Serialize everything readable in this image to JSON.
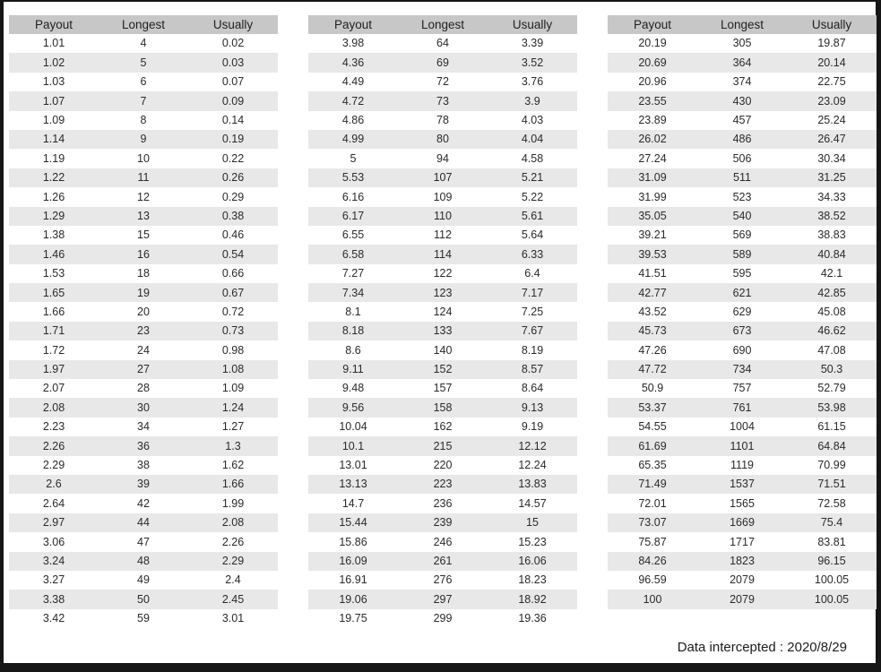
{
  "colors": {
    "frame": "#161616",
    "page_bg": "#ffffff",
    "header_bg": "#c7c7c7",
    "stripe_bg": "#e8e8e8",
    "text": "#2a2a2a"
  },
  "tables": [
    {
      "headers": [
        "Payout",
        "Longest",
        "Usually"
      ],
      "rows": [
        [
          "1.01",
          "4",
          "0.02"
        ],
        [
          "1.02",
          "5",
          "0.03"
        ],
        [
          "1.03",
          "6",
          "0.07"
        ],
        [
          "1.07",
          "7",
          "0.09"
        ],
        [
          "1.09",
          "8",
          "0.14"
        ],
        [
          "1.14",
          "9",
          "0.19"
        ],
        [
          "1.19",
          "10",
          "0.22"
        ],
        [
          "1.22",
          "11",
          "0.26"
        ],
        [
          "1.26",
          "12",
          "0.29"
        ],
        [
          "1.29",
          "13",
          "0.38"
        ],
        [
          "1.38",
          "15",
          "0.46"
        ],
        [
          "1.46",
          "16",
          "0.54"
        ],
        [
          "1.53",
          "18",
          "0.66"
        ],
        [
          "1.65",
          "19",
          "0.67"
        ],
        [
          "1.66",
          "20",
          "0.72"
        ],
        [
          "1.71",
          "23",
          "0.73"
        ],
        [
          "1.72",
          "24",
          "0.98"
        ],
        [
          "1.97",
          "27",
          "1.08"
        ],
        [
          "2.07",
          "28",
          "1.09"
        ],
        [
          "2.08",
          "30",
          "1.24"
        ],
        [
          "2.23",
          "34",
          "1.27"
        ],
        [
          "2.26",
          "36",
          "1.3"
        ],
        [
          "2.29",
          "38",
          "1.62"
        ],
        [
          "2.6",
          "39",
          "1.66"
        ],
        [
          "2.64",
          "42",
          "1.99"
        ],
        [
          "2.97",
          "44",
          "2.08"
        ],
        [
          "3.06",
          "47",
          "2.26"
        ],
        [
          "3.24",
          "48",
          "2.29"
        ],
        [
          "3.27",
          "49",
          "2.4"
        ],
        [
          "3.38",
          "50",
          "2.45"
        ],
        [
          "3.42",
          "59",
          "3.01"
        ]
      ]
    },
    {
      "headers": [
        "Payout",
        "Longest",
        "Usually"
      ],
      "rows": [
        [
          "3.98",
          "64",
          "3.39"
        ],
        [
          "4.36",
          "69",
          "3.52"
        ],
        [
          "4.49",
          "72",
          "3.76"
        ],
        [
          "4.72",
          "73",
          "3.9"
        ],
        [
          "4.86",
          "78",
          "4.03"
        ],
        [
          "4.99",
          "80",
          "4.04"
        ],
        [
          "5",
          "94",
          "4.58"
        ],
        [
          "5.53",
          "107",
          "5.21"
        ],
        [
          "6.16",
          "109",
          "5.22"
        ],
        [
          "6.17",
          "110",
          "5.61"
        ],
        [
          "6.55",
          "112",
          "5.64"
        ],
        [
          "6.58",
          "114",
          "6.33"
        ],
        [
          "7.27",
          "122",
          "6.4"
        ],
        [
          "7.34",
          "123",
          "7.17"
        ],
        [
          "8.1",
          "124",
          "7.25"
        ],
        [
          "8.18",
          "133",
          "7.67"
        ],
        [
          "8.6",
          "140",
          "8.19"
        ],
        [
          "9.11",
          "152",
          "8.57"
        ],
        [
          "9.48",
          "157",
          "8.64"
        ],
        [
          "9.56",
          "158",
          "9.13"
        ],
        [
          "10.04",
          "162",
          "9.19"
        ],
        [
          "10.1",
          "215",
          "12.12"
        ],
        [
          "13.01",
          "220",
          "12.24"
        ],
        [
          "13.13",
          "223",
          "13.83"
        ],
        [
          "14.7",
          "236",
          "14.57"
        ],
        [
          "15.44",
          "239",
          "15"
        ],
        [
          "15.86",
          "246",
          "15.23"
        ],
        [
          "16.09",
          "261",
          "16.06"
        ],
        [
          "16.91",
          "276",
          "18.23"
        ],
        [
          "19.06",
          "297",
          "18.92"
        ],
        [
          "19.75",
          "299",
          "19.36"
        ]
      ]
    },
    {
      "headers": [
        "Payout",
        "Longest",
        "Usually"
      ],
      "rows": [
        [
          "20.19",
          "305",
          "19.87"
        ],
        [
          "20.69",
          "364",
          "20.14"
        ],
        [
          "20.96",
          "374",
          "22.75"
        ],
        [
          "23.55",
          "430",
          "23.09"
        ],
        [
          "23.89",
          "457",
          "25.24"
        ],
        [
          "26.02",
          "486",
          "26.47"
        ],
        [
          "27.24",
          "506",
          "30.34"
        ],
        [
          "31.09",
          "511",
          "31.25"
        ],
        [
          "31.99",
          "523",
          "34.33"
        ],
        [
          "35.05",
          "540",
          "38.52"
        ],
        [
          "39.21",
          "569",
          "38.83"
        ],
        [
          "39.53",
          "589",
          "40.84"
        ],
        [
          "41.51",
          "595",
          "42.1"
        ],
        [
          "42.77",
          "621",
          "42.85"
        ],
        [
          "43.52",
          "629",
          "45.08"
        ],
        [
          "45.73",
          "673",
          "46.62"
        ],
        [
          "47.26",
          "690",
          "47.08"
        ],
        [
          "47.72",
          "734",
          "50.3"
        ],
        [
          "50.9",
          "757",
          "52.79"
        ],
        [
          "53.37",
          "761",
          "53.98"
        ],
        [
          "54.55",
          "1004",
          "61.15"
        ],
        [
          "61.69",
          "1101",
          "64.84"
        ],
        [
          "65.35",
          "1119",
          "70.99"
        ],
        [
          "71.49",
          "1537",
          "71.51"
        ],
        [
          "72.01",
          "1565",
          "72.58"
        ],
        [
          "73.07",
          "1669",
          "75.4"
        ],
        [
          "75.87",
          "1717",
          "83.81"
        ],
        [
          "84.26",
          "1823",
          "96.15"
        ],
        [
          "96.59",
          "2079",
          "100.05"
        ],
        [
          "100",
          "2079",
          "100.05"
        ]
      ]
    }
  ],
  "footer": {
    "note": "Data intercepted : 2020/8/29"
  }
}
